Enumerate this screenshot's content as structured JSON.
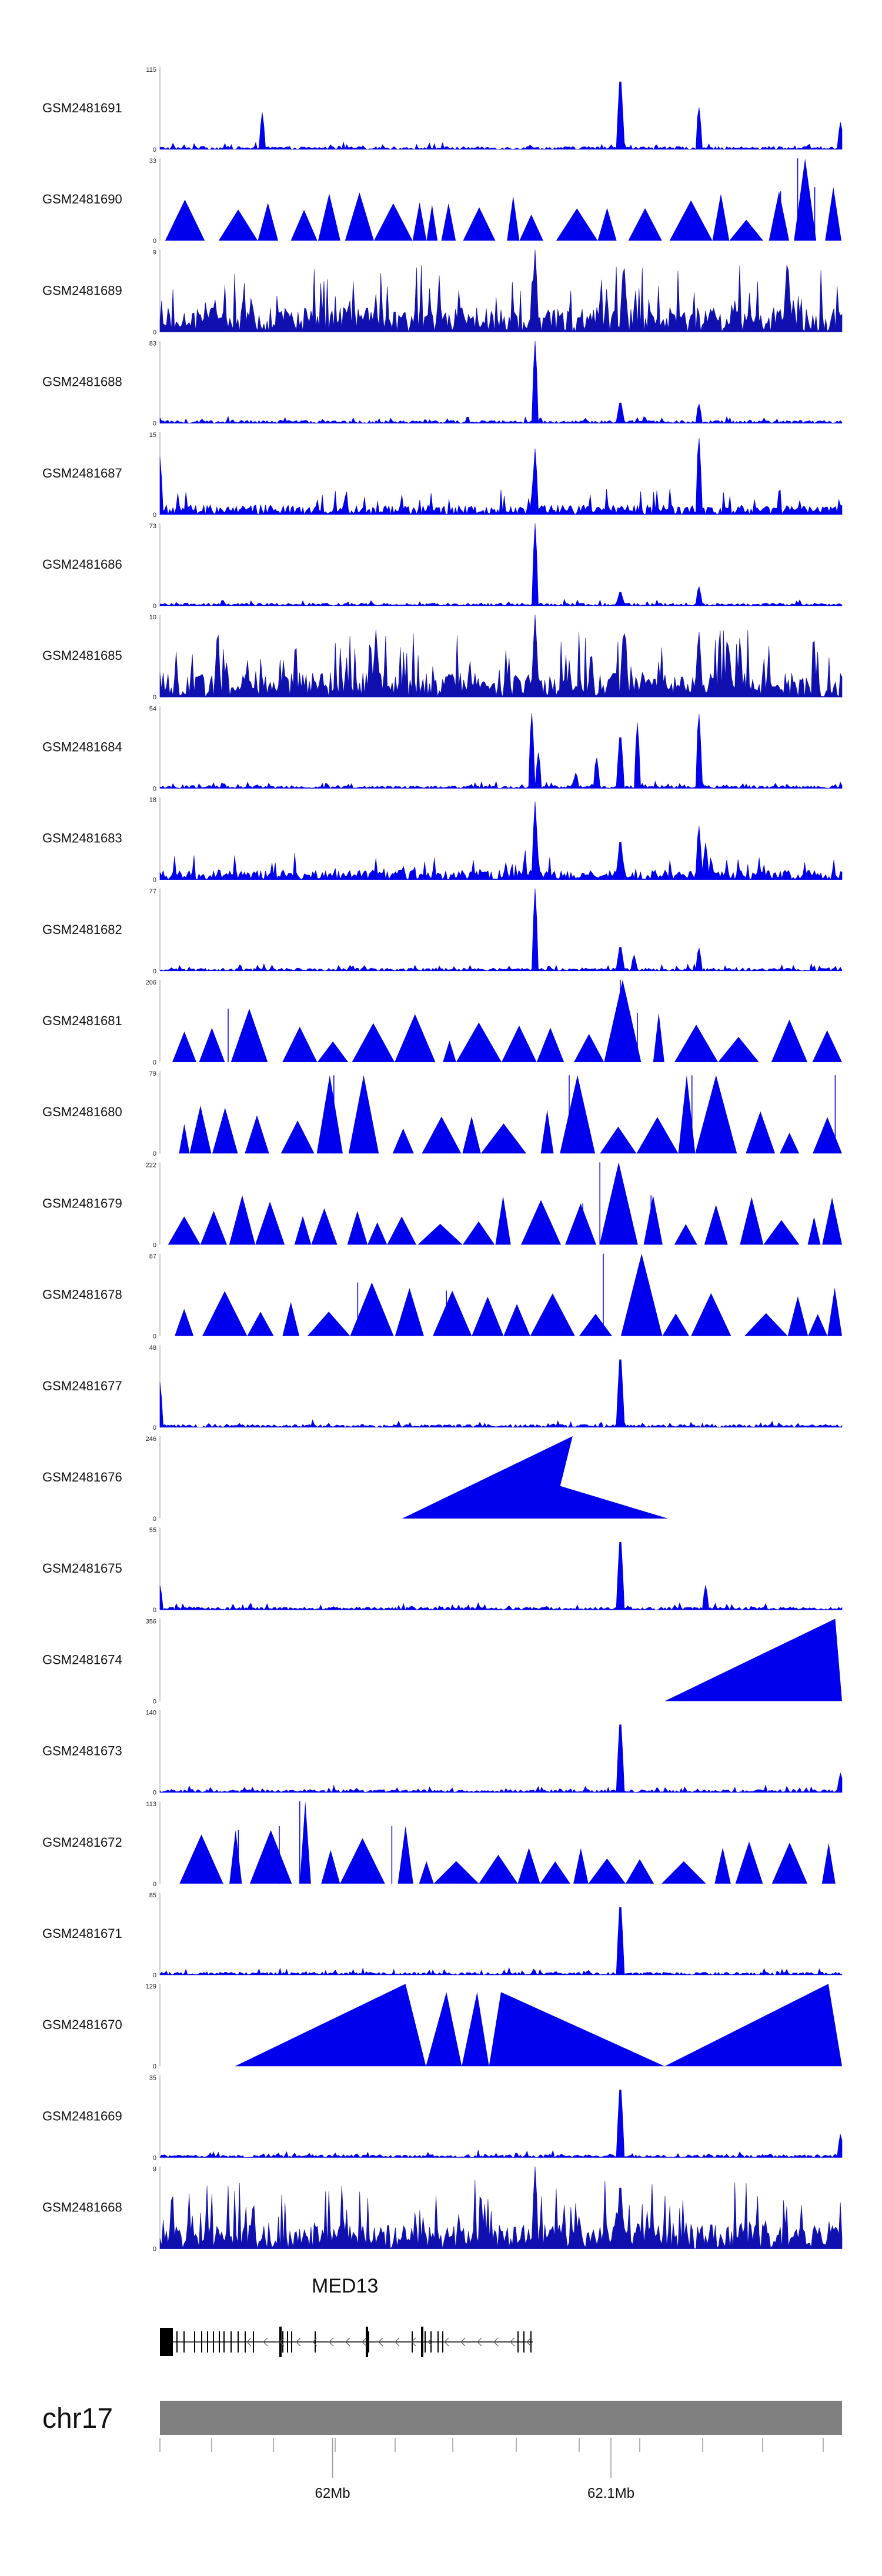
{
  "chart_data": {
    "type": "area",
    "title": "",
    "colors": {
      "signal": "#0000ee",
      "dense_signal": "#1010b0",
      "axis": "#999999",
      "ideogram": "#808080",
      "gene": "#000000"
    },
    "region": {
      "start_mb": 61.938,
      "end_mb": 62.183
    },
    "tracks": [
      {
        "name": "GSM2481691",
        "max": 115,
        "min": 0,
        "style": "sparse",
        "peaks": [
          [
            0.15,
            0.45
          ],
          [
            0.675,
            1.0
          ],
          [
            0.79,
            0.55
          ],
          [
            0.998,
            0.35
          ]
        ]
      },
      {
        "name": "GSM2481690",
        "max": 33,
        "min": 0,
        "style": "triangles",
        "peaks": [
          [
            0.935,
            1.0
          ],
          [
            0.91,
            0.6
          ],
          [
            0.96,
            0.65
          ]
        ]
      },
      {
        "name": "GSM2481689",
        "max": 9,
        "min": 0,
        "style": "dense",
        "peaks": [
          [
            0.55,
            1.0
          ],
          [
            0.68,
            0.9
          ],
          [
            0.92,
            0.95
          ]
        ]
      },
      {
        "name": "GSM2481688",
        "max": 83,
        "min": 0,
        "style": "sparse",
        "peaks": [
          [
            0.55,
            1.0
          ],
          [
            0.675,
            0.3
          ],
          [
            0.79,
            0.25
          ]
        ]
      },
      {
        "name": "GSM2481687",
        "max": 15,
        "min": 0,
        "style": "mixed",
        "peaks": [
          [
            0.55,
            0.8
          ],
          [
            0.79,
            1.0
          ],
          [
            0.0,
            0.7
          ]
        ]
      },
      {
        "name": "GSM2481686",
        "max": 73,
        "min": 0,
        "style": "sparse",
        "peaks": [
          [
            0.55,
            1.0
          ],
          [
            0.675,
            0.2
          ],
          [
            0.79,
            0.25
          ]
        ]
      },
      {
        "name": "GSM2481685",
        "max": 10,
        "min": 0,
        "style": "dense",
        "peaks": [
          [
            0.55,
            1.0
          ],
          [
            0.68,
            0.9
          ],
          [
            0.79,
            0.85
          ]
        ]
      },
      {
        "name": "GSM2481684",
        "max": 54,
        "min": 0,
        "style": "sparse",
        "peaks": [
          [
            0.545,
            0.95
          ],
          [
            0.555,
            0.45
          ],
          [
            0.61,
            0.2
          ],
          [
            0.64,
            0.4
          ],
          [
            0.675,
            0.75
          ],
          [
            0.7,
            0.8
          ],
          [
            0.79,
            0.97
          ]
        ]
      },
      {
        "name": "GSM2481683",
        "max": 18,
        "min": 0,
        "style": "mixed",
        "peaks": [
          [
            0.55,
            0.95
          ],
          [
            0.675,
            0.55
          ],
          [
            0.79,
            0.7
          ],
          [
            0.8,
            0.45
          ]
        ]
      },
      {
        "name": "GSM2481682",
        "max": 77,
        "min": 0,
        "style": "sparse",
        "peaks": [
          [
            0.55,
            1.0
          ],
          [
            0.675,
            0.35
          ],
          [
            0.695,
            0.2
          ],
          [
            0.79,
            0.3
          ]
        ]
      },
      {
        "name": "GSM2481681",
        "max": 206,
        "min": 0,
        "style": "triangles",
        "peaks": [
          [
            0.1,
            0.65
          ],
          [
            0.675,
            1.0
          ],
          [
            0.7,
            0.6
          ]
        ]
      },
      {
        "name": "GSM2481680",
        "max": 79,
        "min": 0,
        "style": "triangles",
        "peaks": [
          [
            0.255,
            0.95
          ],
          [
            0.6,
            0.95
          ],
          [
            0.78,
            0.95
          ],
          [
            0.99,
            0.95
          ]
        ]
      },
      {
        "name": "GSM2481679",
        "max": 222,
        "min": 0,
        "style": "triangles",
        "peaks": [
          [
            0.645,
            1.0
          ],
          [
            0.62,
            0.5
          ],
          [
            0.72,
            0.6
          ]
        ]
      },
      {
        "name": "GSM2481678",
        "max": 87,
        "min": 0,
        "style": "triangles",
        "peaks": [
          [
            0.65,
            1.0
          ],
          [
            0.29,
            0.65
          ],
          [
            0.42,
            0.55
          ]
        ]
      },
      {
        "name": "GSM2481677",
        "max": 48,
        "min": 0,
        "style": "sparse",
        "peaks": [
          [
            0.675,
            1.0
          ],
          [
            0.0,
            0.55
          ]
        ]
      },
      {
        "name": "GSM2481676",
        "max": 246,
        "min": 0,
        "style": "wide",
        "peaks": [
          [
            0.605,
            1.0
          ],
          [
            0.545,
            0.5
          ]
        ]
      },
      {
        "name": "GSM2481675",
        "max": 55,
        "min": 0,
        "style": "sparse",
        "peaks": [
          [
            0.675,
            1.0
          ],
          [
            0.8,
            0.3
          ],
          [
            0.0,
            0.3
          ]
        ]
      },
      {
        "name": "GSM2481674",
        "max": 356,
        "min": 0,
        "style": "wide",
        "peaks": [
          [
            0.99,
            1.0
          ]
        ]
      },
      {
        "name": "GSM2481673",
        "max": 140,
        "min": 0,
        "style": "sparse",
        "peaks": [
          [
            0.675,
            1.0
          ],
          [
            0.998,
            0.25
          ]
        ]
      },
      {
        "name": "GSM2481672",
        "max": 113,
        "min": 0,
        "style": "triangles",
        "peaks": [
          [
            0.205,
            1.0
          ],
          [
            0.115,
            0.65
          ],
          [
            0.175,
            0.7
          ],
          [
            0.34,
            0.7
          ]
        ]
      },
      {
        "name": "GSM2481671",
        "max": 85,
        "min": 0,
        "style": "sparse",
        "peaks": [
          [
            0.675,
            1.0
          ]
        ]
      },
      {
        "name": "GSM2481670",
        "max": 129,
        "min": 0,
        "style": "wide",
        "peaks": [
          [
            0.36,
            1.0
          ],
          [
            0.42,
            0.9
          ],
          [
            0.465,
            0.9
          ],
          [
            0.5,
            0.9
          ],
          [
            0.98,
            1.0
          ]
        ]
      },
      {
        "name": "GSM2481669",
        "max": 35,
        "min": 0,
        "style": "sparse",
        "peaks": [
          [
            0.675,
            1.0
          ],
          [
            0.998,
            0.3
          ]
        ]
      },
      {
        "name": "GSM2481668",
        "max": 9,
        "min": 0,
        "style": "dense",
        "peaks": [
          [
            0.55,
            1.0
          ],
          [
            0.675,
            0.9
          ]
        ]
      }
    ],
    "gene": {
      "name": "MED13",
      "strand": "-"
    },
    "chromosome": {
      "name": "chr17"
    },
    "x_ticks": [
      {
        "label": "62Mb",
        "value_mb": 62.0
      },
      {
        "label": "62.1Mb",
        "value_mb": 62.1
      }
    ]
  }
}
